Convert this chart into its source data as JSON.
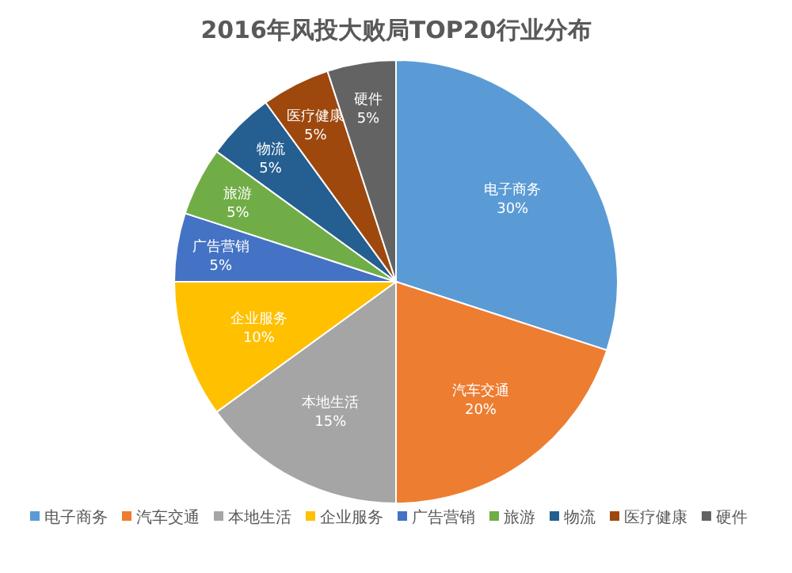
{
  "chart_data": {
    "type": "pie",
    "title": "2016年风投大败局TOP20行业分布",
    "categories": [
      "电子商务",
      "汽车交通",
      "本地生活",
      "企业服务",
      "广告营销",
      "旅游",
      "物流",
      "医疗健康",
      "硬件"
    ],
    "values": [
      30,
      20,
      15,
      10,
      5,
      5,
      5,
      5,
      5
    ],
    "colors": [
      "#5b9bd5",
      "#ed7d31",
      "#a5a5a5",
      "#ffc000",
      "#4472c4",
      "#70ad47",
      "#255e91",
      "#9e480e",
      "#636363"
    ],
    "value_labels": [
      "30%",
      "20%",
      "15%",
      "10%",
      "5%",
      "5%",
      "5%",
      "5%",
      "5%"
    ],
    "legend": "bottom"
  }
}
